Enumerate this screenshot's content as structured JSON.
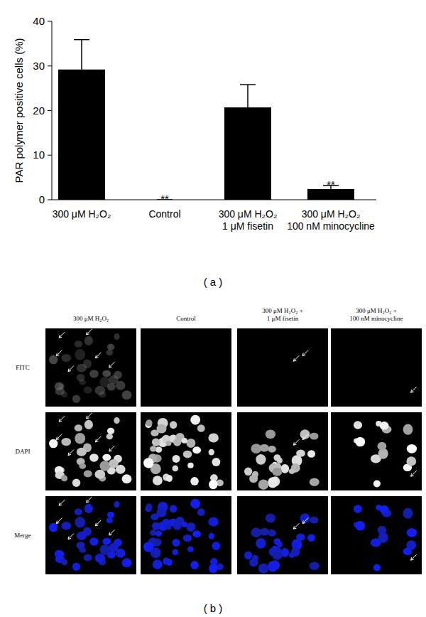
{
  "chart_data": {
    "type": "bar",
    "ylabel": "PAR polymer positive cells (%)",
    "categories": [
      "300 μM H₂O₂",
      "Control",
      "300 μM H₂O₂\n1 μM fisetin",
      "300 μM H₂O₂\n100 nM minocycline"
    ],
    "values": [
      29.2,
      0,
      20.7,
      2.4
    ],
    "errors": [
      6.7,
      0,
      5.1,
      0.8
    ],
    "significance": [
      null,
      "**",
      null,
      "**"
    ],
    "color": "#000000",
    "ylim": [
      0,
      40
    ],
    "yticks": [
      0,
      10,
      20,
      30,
      40
    ]
  },
  "panel_labels": [
    "( a )",
    "( b )"
  ],
  "micrographs": {
    "columns": [
      "300 μM H₂O₂",
      "Control",
      "300 μM H₂O₂ +\n1 μM fisetin",
      "300 μM H₂O₂ +\n100 nM minocycline"
    ],
    "rows": [
      "FITC",
      "DAPI",
      "Merge"
    ]
  }
}
